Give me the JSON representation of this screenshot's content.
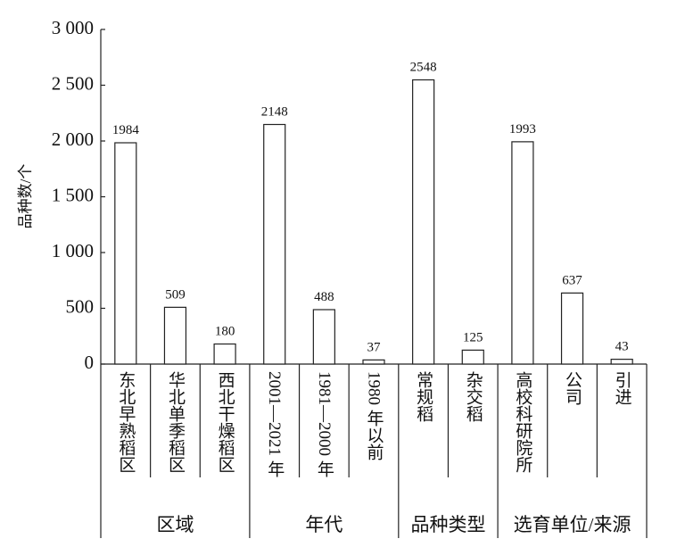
{
  "chart_data": {
    "type": "bar",
    "y_label": "品种数/个",
    "categories": [
      "东北早熟稻区",
      "华北单季稻区",
      "西北干燥稻区",
      "2001—2021 年",
      "1981—2000 年",
      "1980 年以前",
      "常规稻",
      "杂交稻",
      "高校科研院所",
      "公司",
      "引进"
    ],
    "values": [
      1984,
      509,
      180,
      2148,
      488,
      37,
      2548,
      125,
      1993,
      637,
      43
    ],
    "groups": [
      "区域",
      "年代",
      "品种类型",
      "选育单位/来源"
    ],
    "color": "#ffffff",
    "ylim": [
      0,
      3000
    ],
    "yticks": [
      0,
      500,
      {
        "value": 1000,
        "label": "1 000"
      },
      {
        "value": 1500,
        "label": "1 500"
      },
      {
        "value": 2000,
        "label": "2 000"
      },
      {
        "value": 2500,
        "label": "2 500"
      },
      {
        "value": 3000,
        "label": "3 000"
      }
    ]
  }
}
